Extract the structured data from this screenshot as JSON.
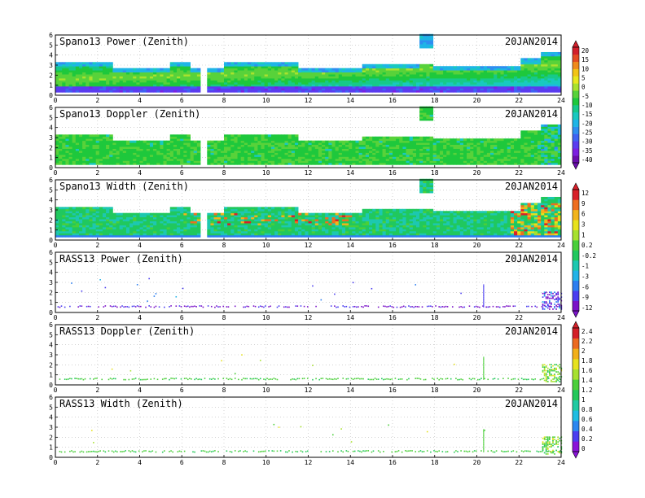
{
  "date_label": "20JAN2014",
  "colors": {
    "frame": "#000000",
    "grid": "#b8b8b8",
    "scale_a": [
      "#6a0dad",
      "#7b1fe0",
      "#5a3cf0",
      "#3f63f2",
      "#2f8ef0",
      "#1fb5e6",
      "#19c9c0",
      "#17c98a",
      "#1ec83c",
      "#58d23a",
      "#a9e22e",
      "#e8e81e",
      "#f2c417",
      "#f08a1c",
      "#e44b22",
      "#d21f2b"
    ],
    "scale_b": [
      "#7a12c8",
      "#4a3df0",
      "#2c7ef0",
      "#22b3e8",
      "#1dc8b0",
      "#20c85e",
      "#49cf3a",
      "#a6e12e",
      "#e8e21c",
      "#f2b41a",
      "#ee6e20",
      "#d8202a"
    ],
    "scale_c": [
      "#8a14d8",
      "#4b3ef0",
      "#2b87f0",
      "#1fbde2",
      "#1fcaa2",
      "#22c85a",
      "#4bcf3a",
      "#a7e12f",
      "#e6e21e",
      "#f2b01a",
      "#ec6a20",
      "#d42028"
    ]
  },
  "chart_data": [
    {
      "type": "heatmap",
      "title": "Spano13 Power (Zenith)",
      "x_ticks": [
        "0",
        "2",
        "4",
        "6",
        "8",
        "10",
        "12",
        "14",
        "16",
        "18",
        "20",
        "22",
        "24"
      ],
      "y_ticks": [
        "0",
        "1",
        "2",
        "3",
        "4",
        "5",
        "6"
      ],
      "xlim": [
        0,
        24
      ],
      "ylim": [
        0,
        6
      ],
      "grid": true,
      "colorbar": "scale_a",
      "field": "spano_power"
    },
    {
      "type": "heatmap",
      "title": "Spano13 Doppler (Zenith)",
      "x_ticks": [
        "0",
        "2",
        "4",
        "6",
        "8",
        "10",
        "12",
        "14",
        "16",
        "18",
        "20",
        "22",
        "24"
      ],
      "y_ticks": [
        "0",
        "1",
        "2",
        "3",
        "4",
        "5",
        "6"
      ],
      "xlim": [
        0,
        24
      ],
      "ylim": [
        0,
        6
      ],
      "grid": true,
      "colorbar": "scale_a",
      "field": "spano_doppler"
    },
    {
      "type": "heatmap",
      "title": "Spano13 Width (Zenith)",
      "x_ticks": [
        "0",
        "2",
        "4",
        "6",
        "8",
        "10",
        "12",
        "14",
        "16",
        "18",
        "20",
        "22",
        "24"
      ],
      "y_ticks": [
        "0",
        "1",
        "2",
        "3",
        "4",
        "5",
        "6"
      ],
      "xlim": [
        0,
        24
      ],
      "ylim": [
        0,
        6
      ],
      "grid": true,
      "colorbar": "scale_b",
      "field": "spano_width"
    },
    {
      "type": "heatmap",
      "title": "RASS13 Power (Zenith)",
      "x_ticks": [
        "0",
        "2",
        "4",
        "6",
        "8",
        "10",
        "12",
        "14",
        "16",
        "18",
        "20",
        "22",
        "24"
      ],
      "y_ticks": [
        "0",
        "1",
        "2",
        "3",
        "4",
        "5",
        "6"
      ],
      "xlim": [
        0,
        24
      ],
      "ylim": [
        0,
        6
      ],
      "grid": true,
      "colorbar": "scale_b",
      "field": "rass_power"
    },
    {
      "type": "heatmap",
      "title": "RASS13 Doppler (Zenith)",
      "x_ticks": [
        "0",
        "2",
        "4",
        "6",
        "8",
        "10",
        "12",
        "14",
        "16",
        "18",
        "20",
        "22",
        "24"
      ],
      "y_ticks": [
        "0",
        "1",
        "2",
        "3",
        "4",
        "5",
        "6"
      ],
      "xlim": [
        0,
        24
      ],
      "ylim": [
        0,
        6
      ],
      "grid": true,
      "colorbar": "scale_c",
      "field": "rass_doppler"
    },
    {
      "type": "heatmap",
      "title": "RASS13 Width (Zenith)",
      "x_ticks": [
        "0",
        "2",
        "4",
        "6",
        "8",
        "10",
        "12",
        "14",
        "16",
        "18",
        "20",
        "22",
        "24"
      ],
      "y_ticks": [
        "0",
        "1",
        "2",
        "3",
        "4",
        "5",
        "6"
      ],
      "xlim": [
        0,
        24
      ],
      "ylim": [
        0,
        6
      ],
      "grid": true,
      "colorbar": "scale_c",
      "field": "rass_width"
    }
  ],
  "colorbars": [
    {
      "name": "scale_a",
      "labels": [
        "20",
        "15",
        "10",
        "5",
        "0",
        "-5",
        "-10",
        "-15",
        "-20",
        "-25",
        "-30",
        "-35",
        "-40"
      ],
      "vmin": -45,
      "vmax": 25
    },
    {
      "name": "scale_b",
      "labels": [
        "12",
        "9",
        "6",
        "3",
        "1",
        "0.2",
        "-0.2",
        "-1",
        "-3",
        "-6",
        "-9",
        "-12"
      ],
      "vmin": -13.5,
      "vmax": 13.5
    },
    {
      "name": "scale_c",
      "labels": [
        "2.4",
        "2.2",
        "2",
        "1.8",
        "1.6",
        "1.4",
        "1.2",
        "1",
        "0.8",
        "0.6",
        "0.4",
        "0.2",
        "0"
      ],
      "vmin": -0.2,
      "vmax": 2.6
    }
  ]
}
